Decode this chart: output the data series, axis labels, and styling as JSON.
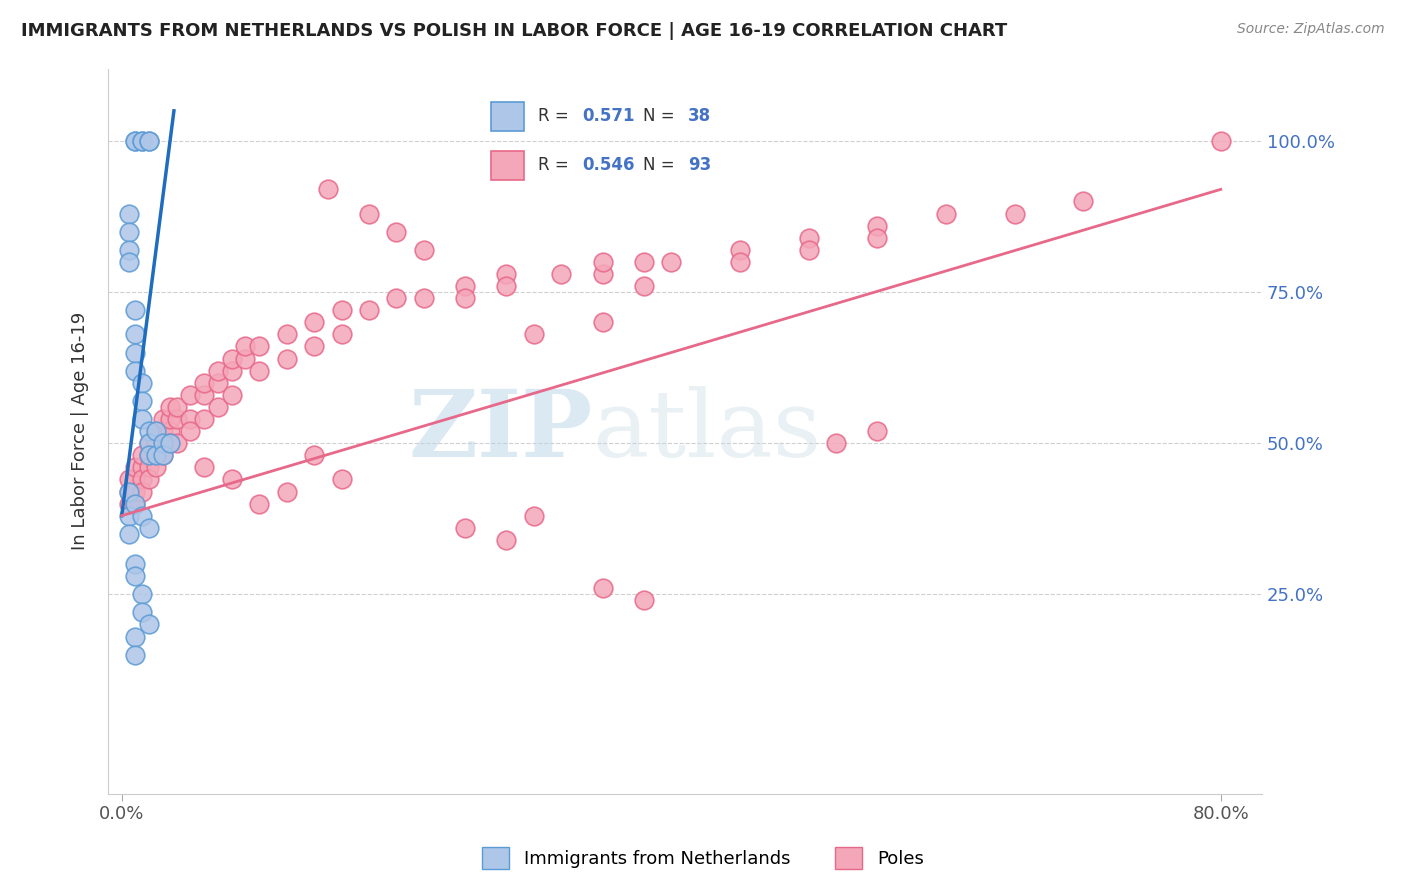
{
  "title": "IMMIGRANTS FROM NETHERLANDS VS POLISH IN LABOR FORCE | AGE 16-19 CORRELATION CHART",
  "source": "Source: ZipAtlas.com",
  "ylabel": "In Labor Force | Age 16-19",
  "legend_entries": [
    {
      "label": "Immigrants from Netherlands",
      "R": "0.571",
      "N": "38",
      "face_color": "#aec6e8",
      "edge_color": "#5b9bd5",
      "line_color": "#1f6dbf"
    },
    {
      "label": "Poles",
      "R": "0.546",
      "N": "93",
      "face_color": "#f4a7b9",
      "edge_color": "#e8688a",
      "line_color": "#e8688a"
    }
  ],
  "blue_x": [
    0.01,
    0.01,
    0.015,
    0.015,
    0.02,
    0.02,
    0.005,
    0.005,
    0.005,
    0.005,
    0.01,
    0.01,
    0.01,
    0.01,
    0.015,
    0.015,
    0.015,
    0.02,
    0.02,
    0.02,
    0.025,
    0.025,
    0.03,
    0.03,
    0.035,
    0.005,
    0.005,
    0.01,
    0.01,
    0.015,
    0.015,
    0.02,
    0.005,
    0.01,
    0.015,
    0.02,
    0.01,
    0.01
  ],
  "blue_y": [
    1.0,
    1.0,
    1.0,
    1.0,
    1.0,
    1.0,
    0.88,
    0.85,
    0.82,
    0.8,
    0.72,
    0.68,
    0.65,
    0.62,
    0.6,
    0.57,
    0.54,
    0.52,
    0.5,
    0.48,
    0.52,
    0.48,
    0.5,
    0.48,
    0.5,
    0.38,
    0.35,
    0.3,
    0.28,
    0.25,
    0.22,
    0.2,
    0.42,
    0.4,
    0.38,
    0.36,
    0.18,
    0.15
  ],
  "pink_x": [
    0.005,
    0.005,
    0.005,
    0.01,
    0.01,
    0.01,
    0.01,
    0.015,
    0.015,
    0.015,
    0.015,
    0.02,
    0.02,
    0.02,
    0.02,
    0.025,
    0.025,
    0.025,
    0.025,
    0.03,
    0.03,
    0.03,
    0.03,
    0.035,
    0.035,
    0.035,
    0.035,
    0.04,
    0.04,
    0.04,
    0.05,
    0.05,
    0.05,
    0.06,
    0.06,
    0.06,
    0.07,
    0.07,
    0.07,
    0.08,
    0.08,
    0.08,
    0.09,
    0.09,
    0.1,
    0.1,
    0.12,
    0.12,
    0.14,
    0.14,
    0.16,
    0.16,
    0.18,
    0.2,
    0.22,
    0.25,
    0.25,
    0.28,
    0.28,
    0.32,
    0.35,
    0.35,
    0.38,
    0.38,
    0.4,
    0.45,
    0.45,
    0.5,
    0.5,
    0.55,
    0.55,
    0.6,
    0.65,
    0.7,
    0.8,
    0.52,
    0.55,
    0.3,
    0.35,
    0.2,
    0.22,
    0.15,
    0.18,
    0.06,
    0.08,
    0.1,
    0.12,
    0.14,
    0.16,
    0.25,
    0.28,
    0.3,
    0.35,
    0.38
  ],
  "pink_y": [
    0.42,
    0.44,
    0.4,
    0.44,
    0.46,
    0.42,
    0.4,
    0.46,
    0.48,
    0.44,
    0.42,
    0.48,
    0.5,
    0.46,
    0.44,
    0.5,
    0.52,
    0.48,
    0.46,
    0.5,
    0.52,
    0.54,
    0.48,
    0.52,
    0.54,
    0.56,
    0.5,
    0.54,
    0.56,
    0.5,
    0.54,
    0.58,
    0.52,
    0.58,
    0.6,
    0.54,
    0.6,
    0.62,
    0.56,
    0.62,
    0.64,
    0.58,
    0.64,
    0.66,
    0.66,
    0.62,
    0.68,
    0.64,
    0.7,
    0.66,
    0.72,
    0.68,
    0.72,
    0.74,
    0.74,
    0.76,
    0.74,
    0.78,
    0.76,
    0.78,
    0.78,
    0.8,
    0.8,
    0.76,
    0.8,
    0.82,
    0.8,
    0.84,
    0.82,
    0.86,
    0.84,
    0.88,
    0.88,
    0.9,
    1.0,
    0.5,
    0.52,
    0.68,
    0.7,
    0.85,
    0.82,
    0.92,
    0.88,
    0.46,
    0.44,
    0.4,
    0.42,
    0.48,
    0.44,
    0.36,
    0.34,
    0.38,
    0.26,
    0.24
  ],
  "blue_line_x": [
    0.0,
    0.038
  ],
  "blue_line_y": [
    0.38,
    1.05
  ],
  "pink_line_x": [
    0.0,
    0.8
  ],
  "pink_line_y": [
    0.38,
    0.92
  ],
  "xlim_min": -0.01,
  "xlim_max": 0.83,
  "ylim_min": -0.08,
  "ylim_max": 1.12,
  "xtick_positions": [
    0.0,
    0.8
  ],
  "xtick_labels": [
    "0.0%",
    "80.0%"
  ],
  "ytick_positions": [
    0.25,
    0.5,
    0.75,
    1.0
  ],
  "ytick_labels": [
    "25.0%",
    "50.0%",
    "75.0%",
    "100.0%"
  ],
  "grid_color": "#d0d0d0",
  "background_color": "#ffffff",
  "watermark": "ZIPatlas",
  "legend_R_N_color": "#4472c4",
  "title_fontsize": 13,
  "axis_label_fontsize": 13,
  "tick_fontsize": 13
}
